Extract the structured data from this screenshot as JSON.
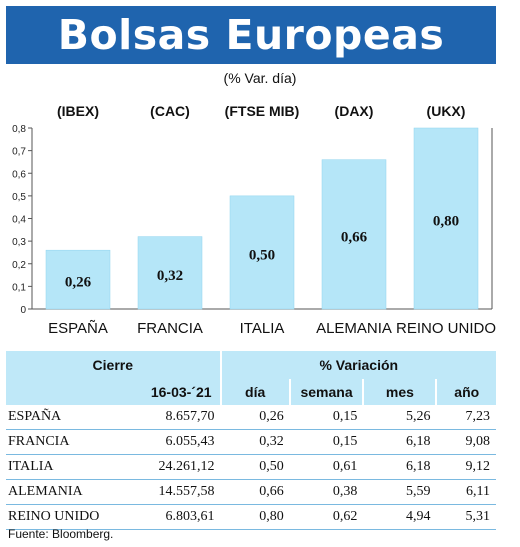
{
  "title": "Bolsas Europeas",
  "subtitle": "(% Var. día)",
  "chart_data": {
    "type": "bar",
    "categories": [
      "ESPAÑA",
      "FRANCIA",
      "ITALIA",
      "ALEMANIA",
      "REINO UNIDO"
    ],
    "indices": [
      "(IBEX)",
      "(CAC)",
      "(FTSE MIB)",
      "(DAX)",
      "(UKX)"
    ],
    "values": [
      0.26,
      0.32,
      0.5,
      0.66,
      0.8
    ],
    "value_labels": [
      "0,26",
      "0,32",
      "0,50",
      "0,66",
      "0,80"
    ],
    "y_ticks": [
      "0",
      "0,1",
      "0,2",
      "0,3",
      "0,4",
      "0,5",
      "0,6",
      "0,7",
      "0,8"
    ],
    "ylim": [
      0,
      0.8
    ],
    "grid": false,
    "bar_color": "#b5e6f8"
  },
  "table": {
    "header_cierre": "Cierre",
    "header_variacion": "% Variación",
    "header_date": "16-03-´21",
    "columns": [
      "día",
      "semana",
      "mes",
      "año"
    ],
    "rows": [
      {
        "name": "ESPAÑA",
        "cierre": "8.657,70",
        "dia": "0,26",
        "semana": "0,15",
        "mes": "5,26",
        "ano": "7,23"
      },
      {
        "name": "FRANCIA",
        "cierre": "6.055,43",
        "dia": "0,32",
        "semana": "0,15",
        "mes": "6,18",
        "ano": "9,08"
      },
      {
        "name": "ITALIA",
        "cierre": "24.261,12",
        "dia": "0,50",
        "semana": "0,61",
        "mes": "6,18",
        "ano": "9,12"
      },
      {
        "name": "ALEMANIA",
        "cierre": "14.557,58",
        "dia": "0,66",
        "semana": "0,38",
        "mes": "5,59",
        "ano": "6,11"
      },
      {
        "name": "REINO UNIDO",
        "cierre": "6.803,61",
        "dia": "0,80",
        "semana": "0,62",
        "mes": "4,94",
        "ano": "5,31"
      }
    ]
  },
  "source": "Fuente: Bloomberg.",
  "colors": {
    "header_blue": "#1f64ae",
    "table_header": "#bfe8f8",
    "row_line": "#7ab9e0"
  }
}
